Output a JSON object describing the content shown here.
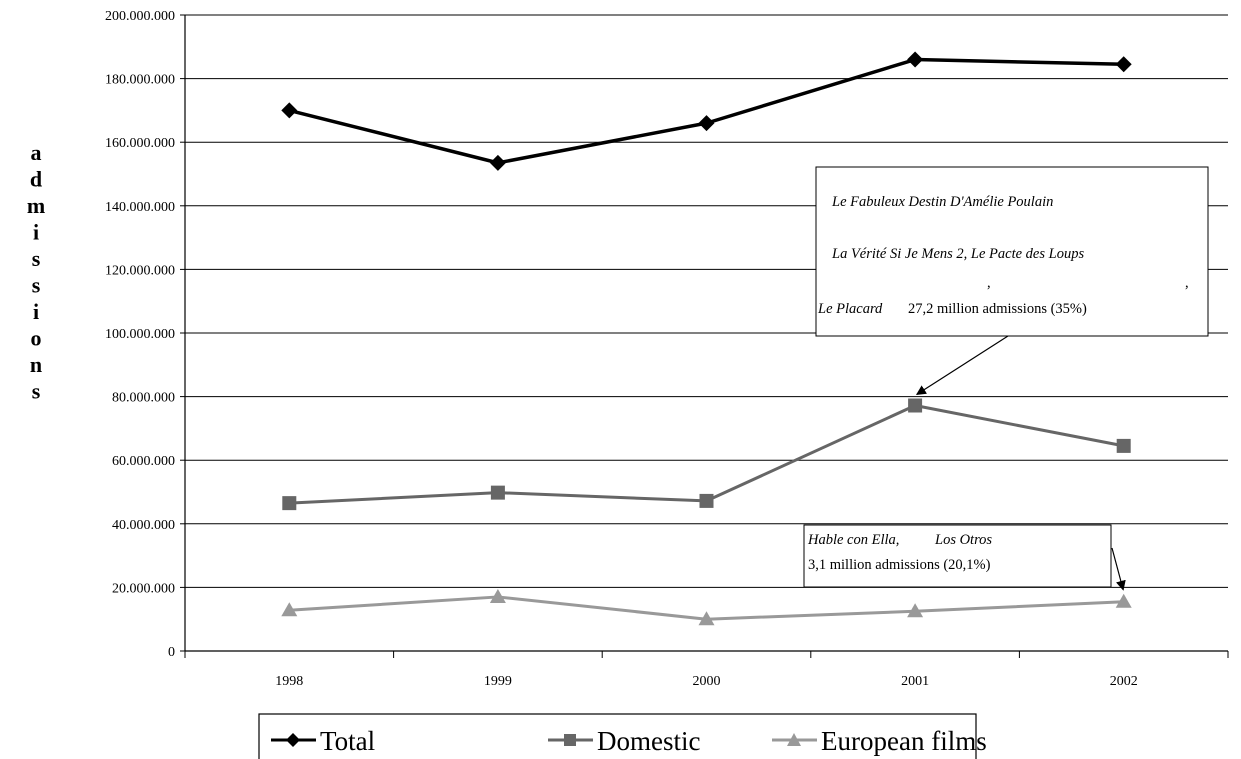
{
  "chart_data": {
    "type": "line",
    "x": [
      "1998",
      "1999",
      "2000",
      "2001",
      "2002"
    ],
    "ylabel": "admissions",
    "ylim": [
      0,
      200000000
    ],
    "yticks": [
      0,
      20000000,
      40000000,
      60000000,
      80000000,
      100000000,
      120000000,
      140000000,
      160000000,
      180000000,
      200000000
    ],
    "ytick_labels": [
      "0",
      "20.000.000",
      "40.000.000",
      "60.000.000",
      "80.000.000",
      "100.000.000",
      "120.000.000",
      "140.000.000",
      "160.000.000",
      "180.000.000",
      "200.000.000"
    ],
    "grid": "horizontal",
    "legend_position": "bottom",
    "series": [
      {
        "name": "Total",
        "color": "#000000",
        "marker": "diamond",
        "values": [
          170000000,
          153500000,
          166000000,
          186000000,
          184500000
        ]
      },
      {
        "name": "Domestic",
        "color": "#666666",
        "marker": "square",
        "values": [
          46500000,
          49800000,
          47200000,
          77200000,
          64500000
        ]
      },
      {
        "name": "European films",
        "color": "#999999",
        "marker": "triangle",
        "values": [
          12800000,
          17000000,
          10000000,
          12500000,
          15500000
        ]
      }
    ],
    "annotations": [
      {
        "target_series": 1,
        "target_index": 3,
        "lines": [
          {
            "italic": "Le Fabuleux Destin D'Amélie Poulain"
          },
          {
            "italic": "La Vérité Si Je Mens 2, Le Pacte des Loups"
          },
          {
            "comma1": ",",
            "comma2": ","
          },
          {
            "italic": "Le Placard",
            "text": "27,2 million admissions (35%)"
          }
        ]
      },
      {
        "target_series": 2,
        "target_index": 4,
        "lines": [
          {
            "italic_a": "Hable con Ella,",
            "italic_b": "Los Otros"
          },
          {
            "text": "3,1 million admissions (20,1%)"
          }
        ]
      }
    ]
  }
}
